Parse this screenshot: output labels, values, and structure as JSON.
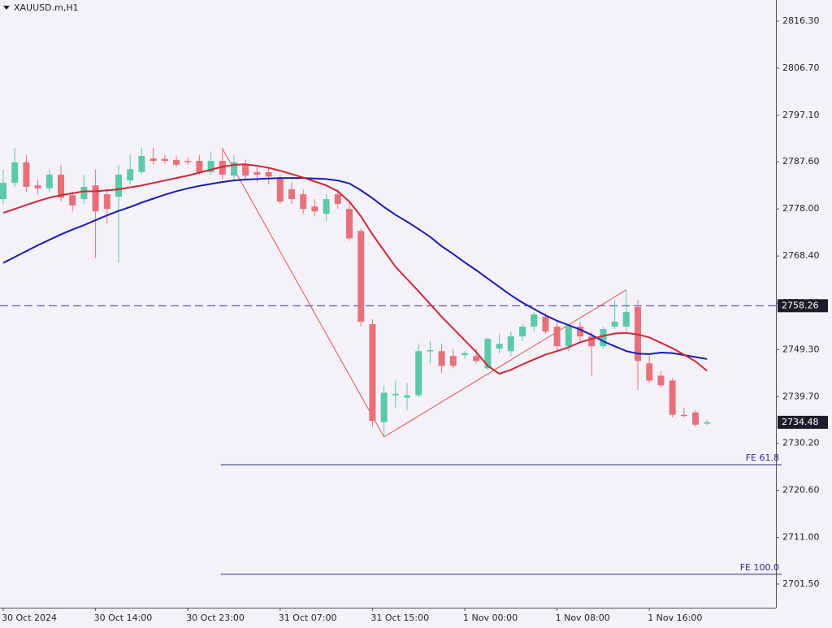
{
  "chart_data": {
    "type": "candlestick",
    "title": "XAUUSD.m,H1",
    "categories": [
      "30 Oct 2024",
      null,
      null,
      null,
      null,
      null,
      null,
      null,
      "30 Oct 14:00",
      null,
      null,
      null,
      null,
      null,
      null,
      null,
      "30 Oct 23:00",
      null,
      null,
      null,
      null,
      null,
      null,
      null,
      "31 Oct 07:00",
      null,
      null,
      null,
      null,
      null,
      null,
      null,
      "31 Oct 15:00",
      null,
      null,
      null,
      null,
      null,
      null,
      null,
      "1 Nov 00:00",
      null,
      null,
      null,
      null,
      null,
      null,
      null,
      "1 Nov 08:00",
      null,
      null,
      null,
      null,
      null,
      null,
      null,
      "1 Nov 16:00",
      null,
      null,
      null,
      null,
      null
    ],
    "open": [
      2780.0,
      2783.3,
      2787.5,
      2782.8,
      2782.2,
      2785.0,
      2780.8,
      2780.0,
      2782.8,
      2781.0,
      2780.5,
      2783.8,
      2785.5,
      2788.3,
      2788.2,
      2788.0,
      2787.8,
      2787.8,
      2785.5,
      2787.8,
      2784.8,
      2787.0,
      2785.5,
      2785.5,
      2784.2,
      2782.0,
      2781.0,
      2778.5,
      2777.0,
      2781.0,
      2778.0,
      2773.5,
      2754.5,
      2734.5,
      2740.0,
      2739.5,
      2740.0,
      2749.0,
      2749.0,
      2748.0,
      2748.2,
      2748.0,
      2745.5,
      2749.5,
      2749.0,
      2752.0,
      2754.0,
      2756.0,
      2754.0,
      2750.0,
      2754.0,
      2752.0,
      2750.0,
      2754.0,
      2754.0,
      2758.0,
      2746.5,
      2744.0,
      2743.0,
      2736.0,
      2736.5,
      2734.2
    ],
    "high": [
      2786.0,
      2790.5,
      2789.0,
      2784.0,
      2786.0,
      2787.0,
      2781.5,
      2785.0,
      2786.0,
      2782.0,
      2787.0,
      2789.0,
      2790.5,
      2790.5,
      2789.0,
      2788.8,
      2788.5,
      2789.0,
      2789.7,
      2790.5,
      2789.0,
      2788.0,
      2786.5,
      2786.5,
      2785.0,
      2783.5,
      2782.0,
      2780.0,
      2781.0,
      2782.0,
      2779.5,
      2774.0,
      2755.5,
      2742.0,
      2743.0,
      2742.5,
      2750.5,
      2751.0,
      2750.5,
      2749.5,
      2749.0,
      2749.5,
      2751.8,
      2752.5,
      2753.0,
      2754.5,
      2757.0,
      2756.8,
      2755.0,
      2754.5,
      2755.0,
      2753.0,
      2754.0,
      2759.5,
      2761.5,
      2759.5,
      2748.0,
      2745.0,
      2743.5,
      2737.5,
      2737.0,
      2735.0
    ],
    "low": [
      2779.0,
      2782.5,
      2781.5,
      2781.0,
      2781.5,
      2779.5,
      2777.5,
      2779.0,
      2768.0,
      2775.0,
      2767.0,
      2783.0,
      2785.0,
      2787.0,
      2787.2,
      2786.5,
      2787.0,
      2785.0,
      2785.0,
      2784.0,
      2784.0,
      2784.0,
      2783.5,
      2783.0,
      2779.0,
      2779.0,
      2777.0,
      2776.5,
      2775.5,
      2778.0,
      2771.5,
      2754.0,
      2733.5,
      2731.5,
      2737.5,
      2737.0,
      2739.5,
      2746.5,
      2744.5,
      2745.5,
      2747.5,
      2746.5,
      2745.2,
      2748.5,
      2748.0,
      2751.0,
      2753.0,
      2752.5,
      2749.0,
      2749.0,
      2751.0,
      2744.0,
      2749.5,
      2753.5,
      2753.0,
      2741.0,
      2742.5,
      2741.5,
      2735.5,
      2735.5,
      2733.5,
      2733.8
    ],
    "close": [
      2783.3,
      2787.5,
      2782.5,
      2782.2,
      2785.0,
      2780.3,
      2778.7,
      2782.5,
      2777.5,
      2778.0,
      2785.0,
      2786.1,
      2788.8,
      2787.8,
      2787.8,
      2787.0,
      2787.6,
      2785.5,
      2787.8,
      2785.0,
      2787.5,
      2784.8,
      2785.0,
      2784.6,
      2779.5,
      2780.0,
      2778.0,
      2777.5,
      2780.0,
      2779.0,
      2772.0,
      2755.0,
      2734.8,
      2740.5,
      2740.3,
      2740.0,
      2749.0,
      2749.2,
      2746.0,
      2746.0,
      2748.6,
      2747.0,
      2751.5,
      2750.5,
      2752.0,
      2754.0,
      2756.5,
      2753.0,
      2750.0,
      2754.0,
      2752.0,
      2750.0,
      2753.5,
      2755.0,
      2757.0,
      2747.0,
      2743.0,
      2742.0,
      2736.0,
      2735.8,
      2734.0,
      2734.48
    ],
    "up_color": "#5cc9a7",
    "down_color": "#e8707b",
    "lines": [
      {
        "color": "#1a1ab4",
        "values": [
          2767.0,
          2768.2,
          2769.4,
          2770.6,
          2771.7,
          2772.8,
          2773.8,
          2774.7,
          2775.7,
          2776.7,
          2777.6,
          2778.4,
          2779.3,
          2780.1,
          2780.9,
          2781.6,
          2782.2,
          2782.7,
          2783.1,
          2783.5,
          2783.8,
          2784.0,
          2784.1,
          2784.2,
          2784.3,
          2784.3,
          2784.3,
          2784.2,
          2784.1,
          2783.8,
          2783.2,
          2781.8,
          2780.2,
          2778.4,
          2776.8,
          2775.4,
          2773.9,
          2772.3,
          2770.4,
          2768.8,
          2767.1,
          2765.5,
          2763.8,
          2762.1,
          2760.4,
          2758.9,
          2757.6,
          2756.3,
          2755.2,
          2754.3,
          2753.4,
          2752.3,
          2751.0,
          2750.0,
          2749.0,
          2748.5,
          2748.4,
          2748.7,
          2748.6,
          2748.2,
          2747.8,
          2747.4
        ]
      },
      {
        "color": "#d42535",
        "values": [
          2777.2,
          2778.0,
          2778.8,
          2779.6,
          2780.3,
          2780.8,
          2781.2,
          2781.6,
          2781.6,
          2781.8,
          2782.0,
          2782.4,
          2782.8,
          2783.3,
          2783.8,
          2784.3,
          2784.8,
          2785.4,
          2786.0,
          2786.6,
          2787.0,
          2787.1,
          2786.8,
          2786.4,
          2785.8,
          2785.1,
          2784.4,
          2783.6,
          2782.8,
          2781.6,
          2779.5,
          2776.5,
          2772.8,
          2769.5,
          2766.2,
          2763.7,
          2761.2,
          2758.6,
          2756.0,
          2753.6,
          2751.2,
          2748.8,
          2746.0,
          2744.4,
          2745.2,
          2746.3,
          2747.3,
          2748.3,
          2749.0,
          2749.8,
          2750.8,
          2751.5,
          2752.1,
          2752.6,
          2752.7,
          2752.4,
          2751.8,
          2750.7,
          2749.6,
          2748.3,
          2746.9,
          2745.0
        ]
      }
    ],
    "fibo_expansion": {
      "color": "#e8504a",
      "at": [
        19,
        33,
        54
      ],
      "prices": [
        2790.3,
        2731.5,
        2761.5
      ],
      "levels": [
        {
          "value": 2725.85,
          "label": "FE 61.8"
        },
        {
          "value": 2703.5,
          "label": "FE 100.0"
        }
      ]
    },
    "hlines": [
      {
        "value": 2758.26,
        "color": "#3a3a8c"
      }
    ],
    "current_price": 2734.48,
    "ylim": [
      2696.68,
      2820.61
    ],
    "yticks": [
      {
        "value": 2816.3,
        "label": "2816.30"
      },
      {
        "value": 2806.7,
        "label": "2806.70"
      },
      {
        "value": 2797.1,
        "label": "2797.10"
      },
      {
        "value": 2787.6,
        "label": "2787.60"
      },
      {
        "value": 2778.0,
        "label": "2778.00"
      },
      {
        "value": 2768.4,
        "label": "2768.40"
      },
      {
        "value": 2758.8,
        "label": "2758.80"
      },
      {
        "value": 2749.3,
        "label": "2749.30"
      },
      {
        "value": 2739.7,
        "label": "2739.70"
      },
      {
        "value": 2730.2,
        "label": "2730.20"
      },
      {
        "value": 2720.6,
        "label": "2720.60"
      },
      {
        "value": 2711.0,
        "label": "2711.00"
      },
      {
        "value": 2701.5,
        "label": "2701.50"
      }
    ]
  }
}
